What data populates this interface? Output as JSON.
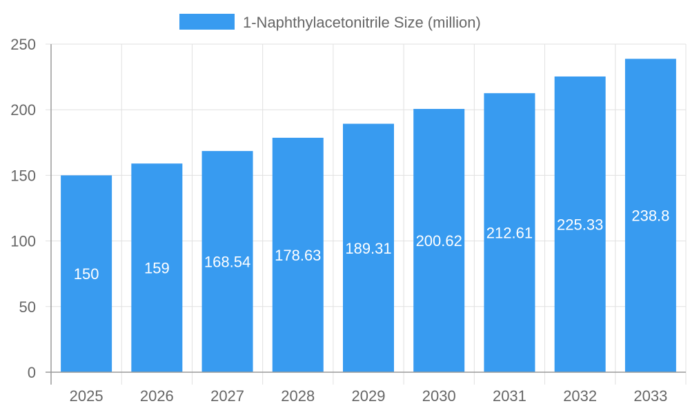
{
  "chart_data": {
    "type": "bar",
    "title": "",
    "xlabel": "",
    "ylabel": "",
    "categories": [
      "2025",
      "2026",
      "2027",
      "2028",
      "2029",
      "2030",
      "2031",
      "2032",
      "2033"
    ],
    "series": [
      {
        "name": "1-Naphthylacetonitrile Size (million)",
        "values": [
          150,
          159,
          168.54,
          178.63,
          189.31,
          200.62,
          212.61,
          225.33,
          238.8
        ],
        "color": "#389bf0"
      }
    ],
    "data_labels": [
      "150",
      "159",
      "168.54",
      "178.63",
      "189.31",
      "200.62",
      "212.61",
      "225.33",
      "238.8"
    ],
    "ylim": [
      0,
      250
    ],
    "yticks": [
      0,
      50,
      100,
      150,
      200,
      250
    ],
    "grid": true,
    "legend_position": "top"
  }
}
